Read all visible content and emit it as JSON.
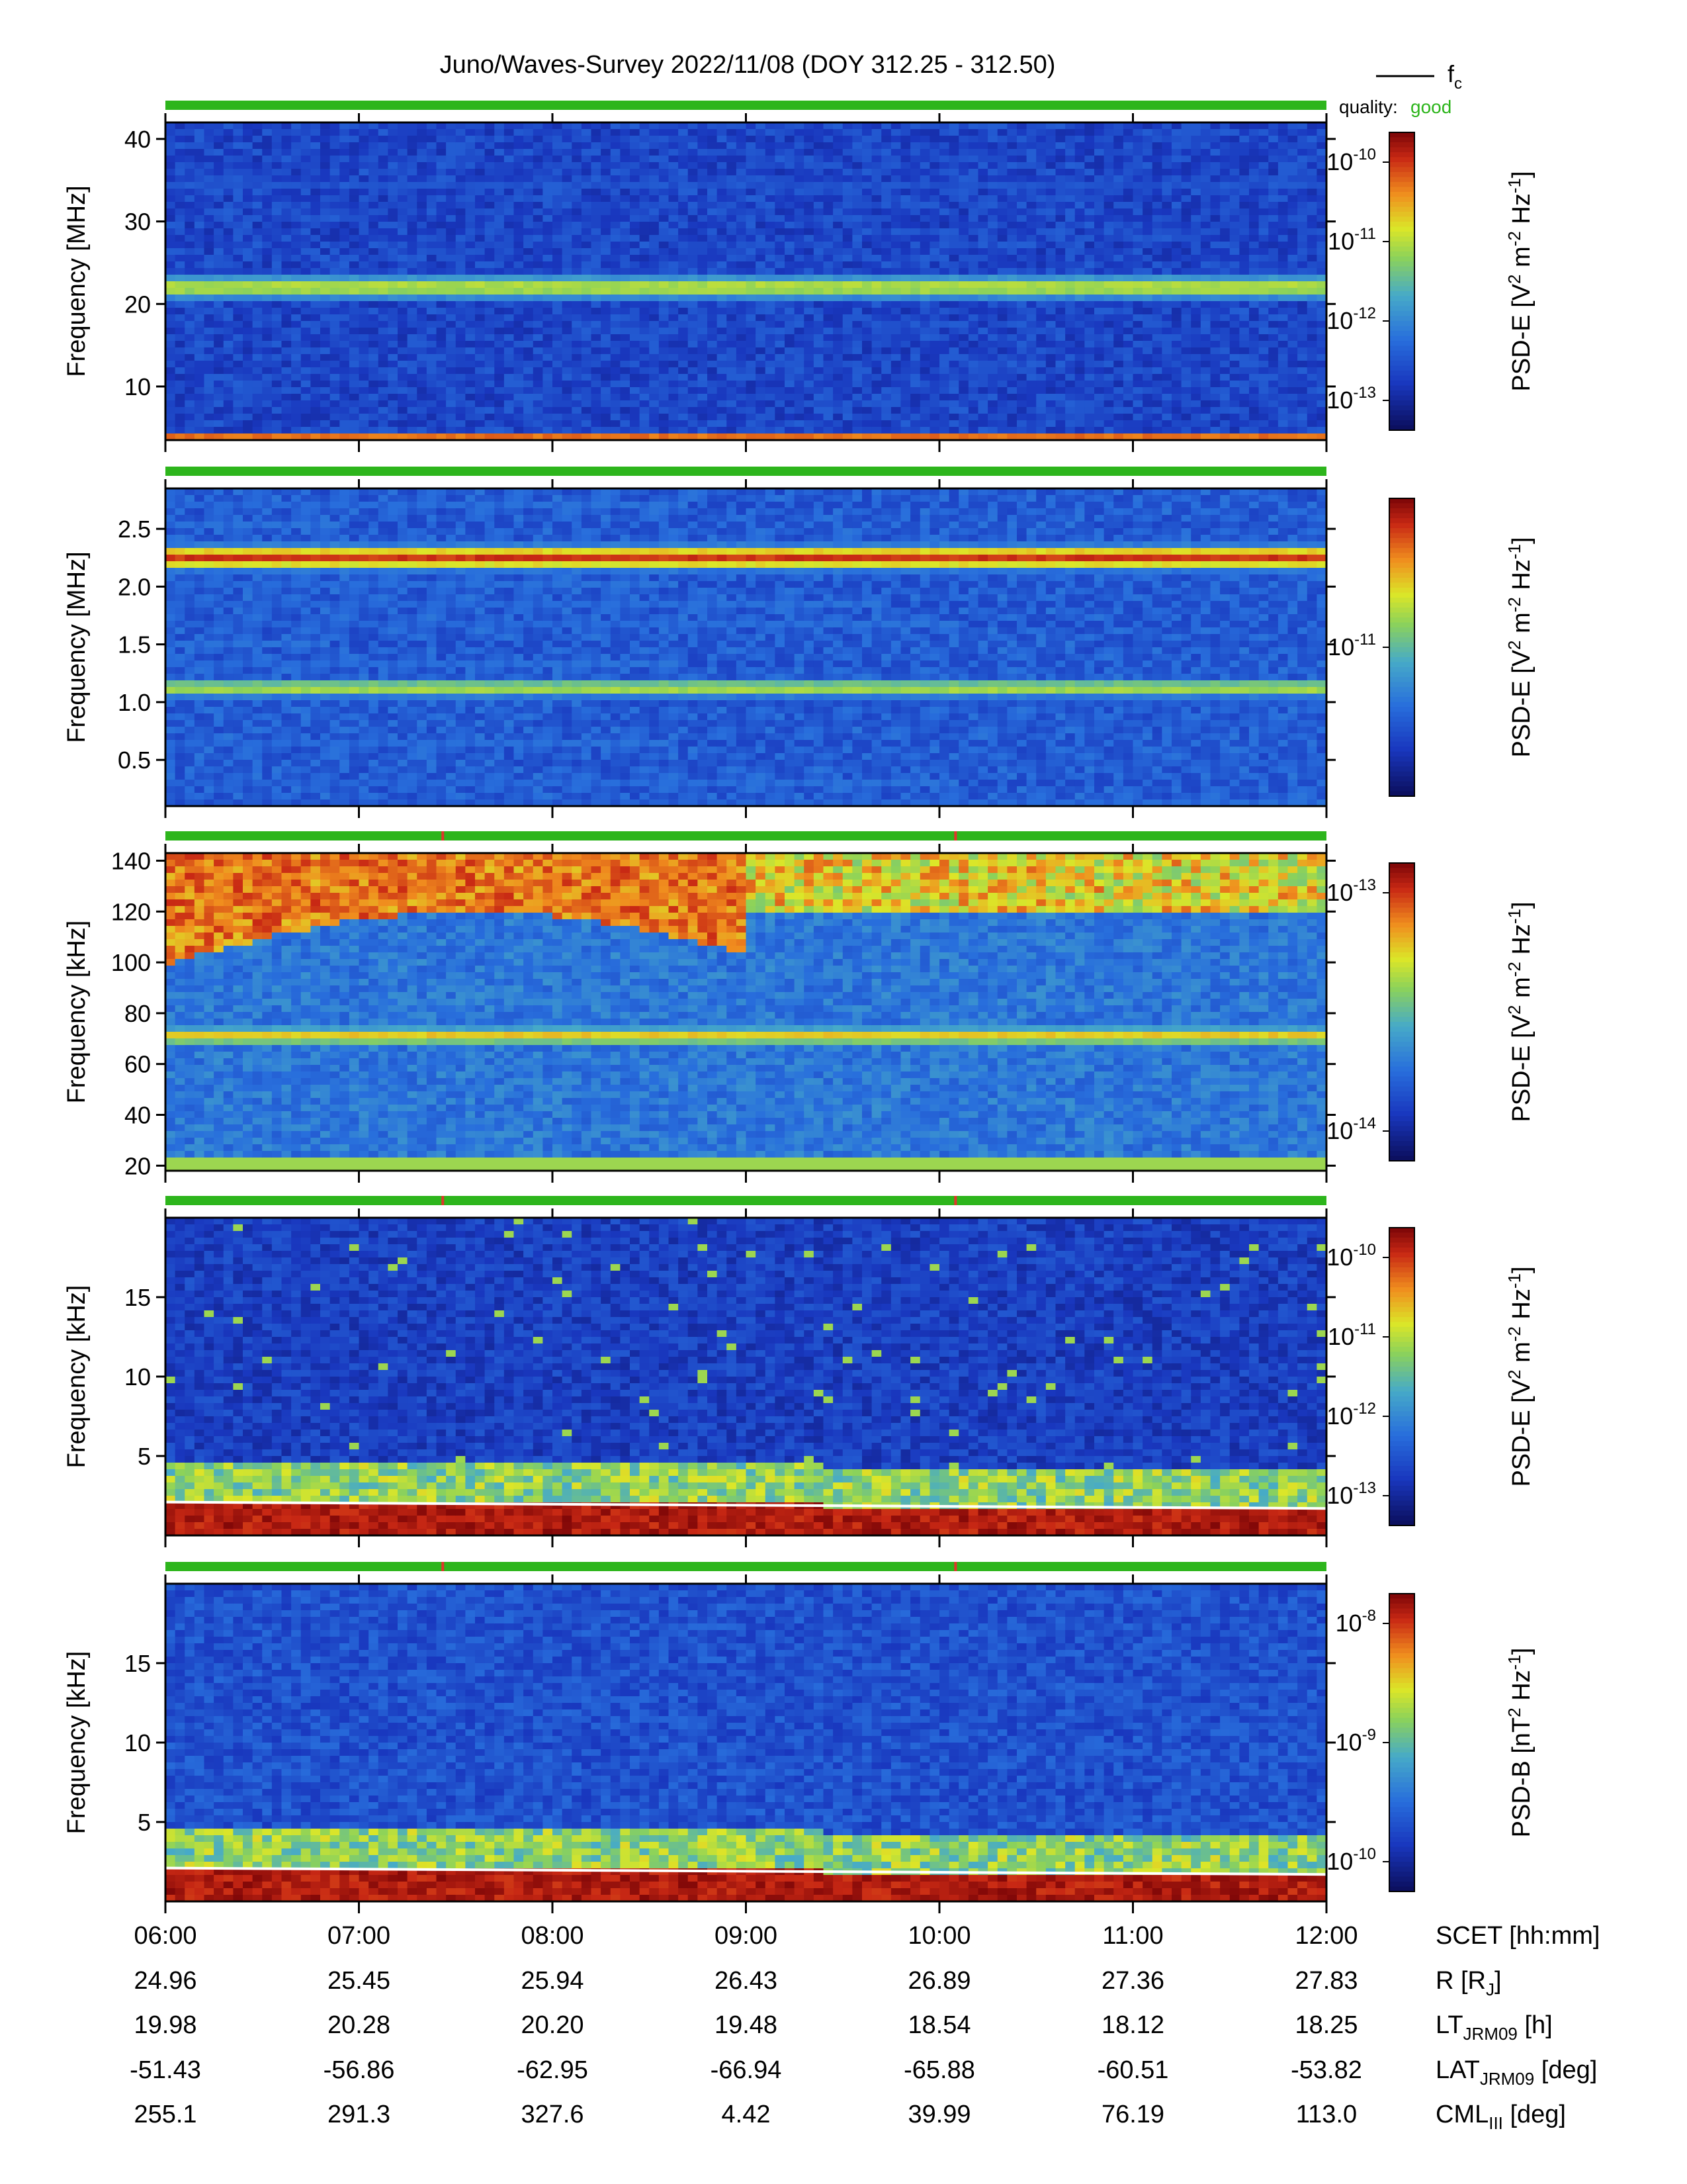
{
  "title": "Juno/Waves-Survey  2022/11/08 (DOY 312.25 - 312.50)",
  "legend": {
    "fc_label": "f",
    "fc_sub": "c",
    "quality_label": "quality:",
    "quality_value": "good",
    "quality_color": "#2db51c"
  },
  "colors": {
    "quality_bar": "#2db51c",
    "quality_mark": "#e0352b",
    "fc_line": "#ffffff"
  },
  "chart_data": [
    {
      "type": "heatmap",
      "ylabel": "Frequency [MHz]",
      "ylim": [
        3.5,
        42
      ],
      "yticks": [
        10,
        20,
        30,
        40
      ],
      "ytick_labels": [
        "10",
        "20",
        "30",
        "40"
      ],
      "colorbar_label": "PSD-E [V2 m-2 Hz-1]",
      "colorbar_ticks": [
        "10-10",
        "10-11",
        "10-12",
        "10-13"
      ],
      "colorbar_exponents": [
        "-10",
        "-11",
        "-12",
        "-13"
      ],
      "colorbar_quantity": "PSD-E",
      "colorbar_unit": "V",
      "bands": [
        {
          "freq": 22,
          "width": 1.6,
          "level": 0.62
        },
        {
          "freq": 4.0,
          "width": 0.3,
          "level": 0.9
        },
        {
          "freq": 34.5,
          "width": 1.0,
          "level": 0.2
        }
      ],
      "background_level": 0.12,
      "quality_marks": []
    },
    {
      "type": "heatmap",
      "ylabel": "Frequency [MHz]",
      "ylim": [
        0.1,
        2.85
      ],
      "yticks": [
        0.5,
        1.0,
        1.5,
        2.0,
        2.5
      ],
      "ytick_labels": [
        "0.5",
        "1.0",
        "1.5",
        "2.0",
        "2.5"
      ],
      "colorbar_label": "PSD-E [V2 m-2 Hz-1]",
      "colorbar_ticks": [
        "10-11"
      ],
      "colorbar_exponents": [
        "-11"
      ],
      "colorbar_quantity": "PSD-E",
      "colorbar_unit": "V",
      "bands": [
        {
          "freq": 2.25,
          "width": 0.11,
          "level": 0.88
        },
        {
          "freq": 1.12,
          "width": 0.09,
          "level": 0.6
        }
      ],
      "background_level": 0.18,
      "quality_marks": []
    },
    {
      "type": "heatmap",
      "ylabel": "Frequency [kHz]",
      "ylim": [
        18,
        143
      ],
      "yticks": [
        20,
        40,
        60,
        80,
        100,
        120,
        140
      ],
      "ytick_labels": [
        "20",
        "40",
        "60",
        "80",
        "100",
        "120",
        "140"
      ],
      "colorbar_label": "PSD-E [V2 m-2 Hz-1]",
      "colorbar_ticks": [
        "10-13",
        "10-14"
      ],
      "colorbar_exponents": [
        "-13",
        "-14"
      ],
      "colorbar_quantity": "PSD-E",
      "colorbar_unit": "V",
      "bands": [
        {
          "freq": 71,
          "width": 4,
          "level": 0.7
        }
      ],
      "background_level": 0.25,
      "quality_marks": [
        "07:26",
        "10:05"
      ]
    },
    {
      "type": "heatmap",
      "ylabel": "Frequency [kHz]",
      "ylim": [
        0,
        20
      ],
      "yticks": [
        5,
        10,
        15
      ],
      "ytick_labels": [
        "5",
        "10",
        "15"
      ],
      "colorbar_label": "PSD-E [V2 m-2 Hz-1]",
      "colorbar_ticks": [
        "10-10",
        "10-11",
        "10-12",
        "10-13"
      ],
      "colorbar_exponents": [
        "-10",
        "-11",
        "-12",
        "-13"
      ],
      "colorbar_quantity": "PSD-E",
      "colorbar_unit": "V",
      "fc_line": {
        "start": 2.1,
        "end": 1.7
      },
      "bands": [],
      "background_level": 0.1,
      "quality_marks": [
        "07:26",
        "10:05"
      ]
    },
    {
      "type": "heatmap",
      "ylabel": "Frequency [kHz]",
      "ylim": [
        0,
        20
      ],
      "yticks": [
        5,
        10,
        15
      ],
      "ytick_labels": [
        "5",
        "10",
        "15"
      ],
      "colorbar_label": "PSD-B [nT2 Hz-1]",
      "colorbar_ticks": [
        "10-8",
        "10-9",
        "10-10"
      ],
      "colorbar_exponents": [
        "-8",
        "-9",
        "-10"
      ],
      "colorbar_quantity": "PSD-B",
      "colorbar_unit": "nT",
      "fc_line": {
        "start": 2.1,
        "end": 1.7
      },
      "bands": [],
      "background_level": 0.15,
      "quality_marks": [
        "07:26",
        "10:05"
      ]
    }
  ],
  "x_axis": {
    "labels": [
      "06:00",
      "07:00",
      "08:00",
      "09:00",
      "10:00",
      "11:00",
      "12:00"
    ]
  },
  "ephemeris": [
    {
      "label": "SCET [hh:mm]",
      "label_main": "SCET [hh:mm]",
      "label_sub": "",
      "label_tail": "",
      "values": [
        "06:00",
        "07:00",
        "08:00",
        "09:00",
        "10:00",
        "11:00",
        "12:00"
      ]
    },
    {
      "label": "R [RJ]",
      "label_main": "R [R",
      "label_sub": "J",
      "label_tail": "]",
      "values": [
        "24.96",
        "25.45",
        "25.94",
        "26.43",
        "26.89",
        "27.36",
        "27.83"
      ]
    },
    {
      "label": "LTJRM09 [h]",
      "label_main": "LT",
      "label_sub": "JRM09",
      "label_tail": " [h]",
      "values": [
        "19.98",
        "20.28",
        "20.20",
        "19.48",
        "18.54",
        "18.12",
        "18.25"
      ]
    },
    {
      "label": "LATJRM09 [deg]",
      "label_main": "LAT",
      "label_sub": "JRM09",
      "label_tail": " [deg]",
      "values": [
        "-51.43",
        "-56.86",
        "-62.95",
        "-66.94",
        "-65.88",
        "-60.51",
        "-53.82"
      ]
    },
    {
      "label": "CMLIII [deg]",
      "label_main": "CML",
      "label_sub": "III",
      "label_tail": " [deg]",
      "values": [
        "255.1",
        "291.3",
        "327.6",
        "4.42",
        "39.99",
        "76.19",
        "113.0"
      ]
    }
  ]
}
